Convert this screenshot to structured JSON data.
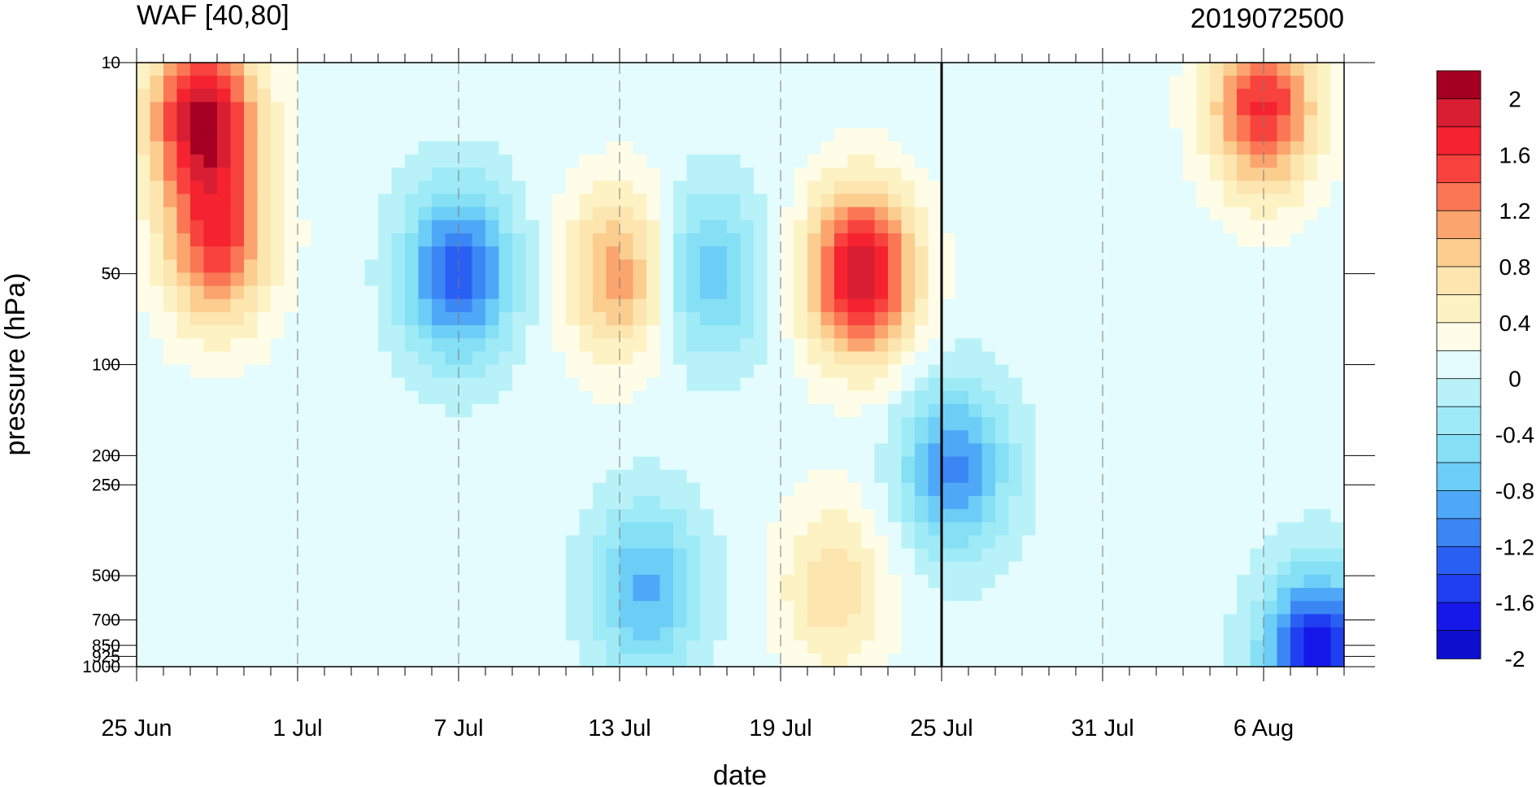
{
  "chart_data": {
    "type": "heatmap",
    "title_left": "WAF [40,80]",
    "title_right": "2019072500",
    "xlabel": "date",
    "ylabel": "pressure (hPa)",
    "x_ticks": [
      "25 Jun",
      "1 Jul",
      "7 Jul",
      "13 Jul",
      "19 Jul",
      "25 Jul",
      "31 Jul",
      "6 Aug"
    ],
    "y_ticks": [
      "10",
      "50",
      "100",
      "200",
      "250",
      "500",
      "700",
      "850",
      "925",
      "1000"
    ],
    "y_scale": "log",
    "ylim": [
      1000,
      10
    ],
    "xlim": [
      "25 Jun",
      "9 Aug"
    ],
    "current_date": "25 Jul",
    "colorbar_labels": [
      "2",
      "1.6",
      "1.2",
      "0.8",
      "0.4",
      "0",
      "-0.4",
      "-0.8",
      "-1.2",
      "-1.6",
      "-2"
    ],
    "colorbar_colors": [
      "#a50021",
      "#d81e33",
      "#f5222f",
      "#f8423d",
      "#fa7654",
      "#fba46d",
      "#fbcd8f",
      "#fde5b0",
      "#fdf2c3",
      "#fffce8",
      "#e4fcfd",
      "#b8f2f8",
      "#9feaf7",
      "#85dff5",
      "#6ccdf7",
      "#4ea8f7",
      "#3b86f5",
      "#2a5ff3",
      "#1f3ff0",
      "#1618ea",
      "#0d0fcf"
    ],
    "features": [
      {
        "date_index": 2.5,
        "pressure": 15,
        "value": 2.0
      },
      {
        "date_index": 3.0,
        "pressure": 40,
        "value": 1.4
      },
      {
        "date_index": 12.0,
        "pressure": 50,
        "value": -1.5
      },
      {
        "date_index": 18.0,
        "pressure": 50,
        "value": 1.1
      },
      {
        "date_index": 21.3,
        "pressure": 50,
        "value": -0.9
      },
      {
        "date_index": 27.0,
        "pressure": 50,
        "value": 2.0
      },
      {
        "date_index": 42.0,
        "pressure": 14,
        "value": 1.6
      },
      {
        "date_index": 19.0,
        "pressure": 550,
        "value": -1.0
      },
      {
        "date_index": 30.5,
        "pressure": 220,
        "value": -1.2
      },
      {
        "date_index": 44.0,
        "pressure": 950,
        "value": -2.0
      },
      {
        "date_index": 26.0,
        "pressure": 550,
        "value": 0.7
      }
    ]
  }
}
